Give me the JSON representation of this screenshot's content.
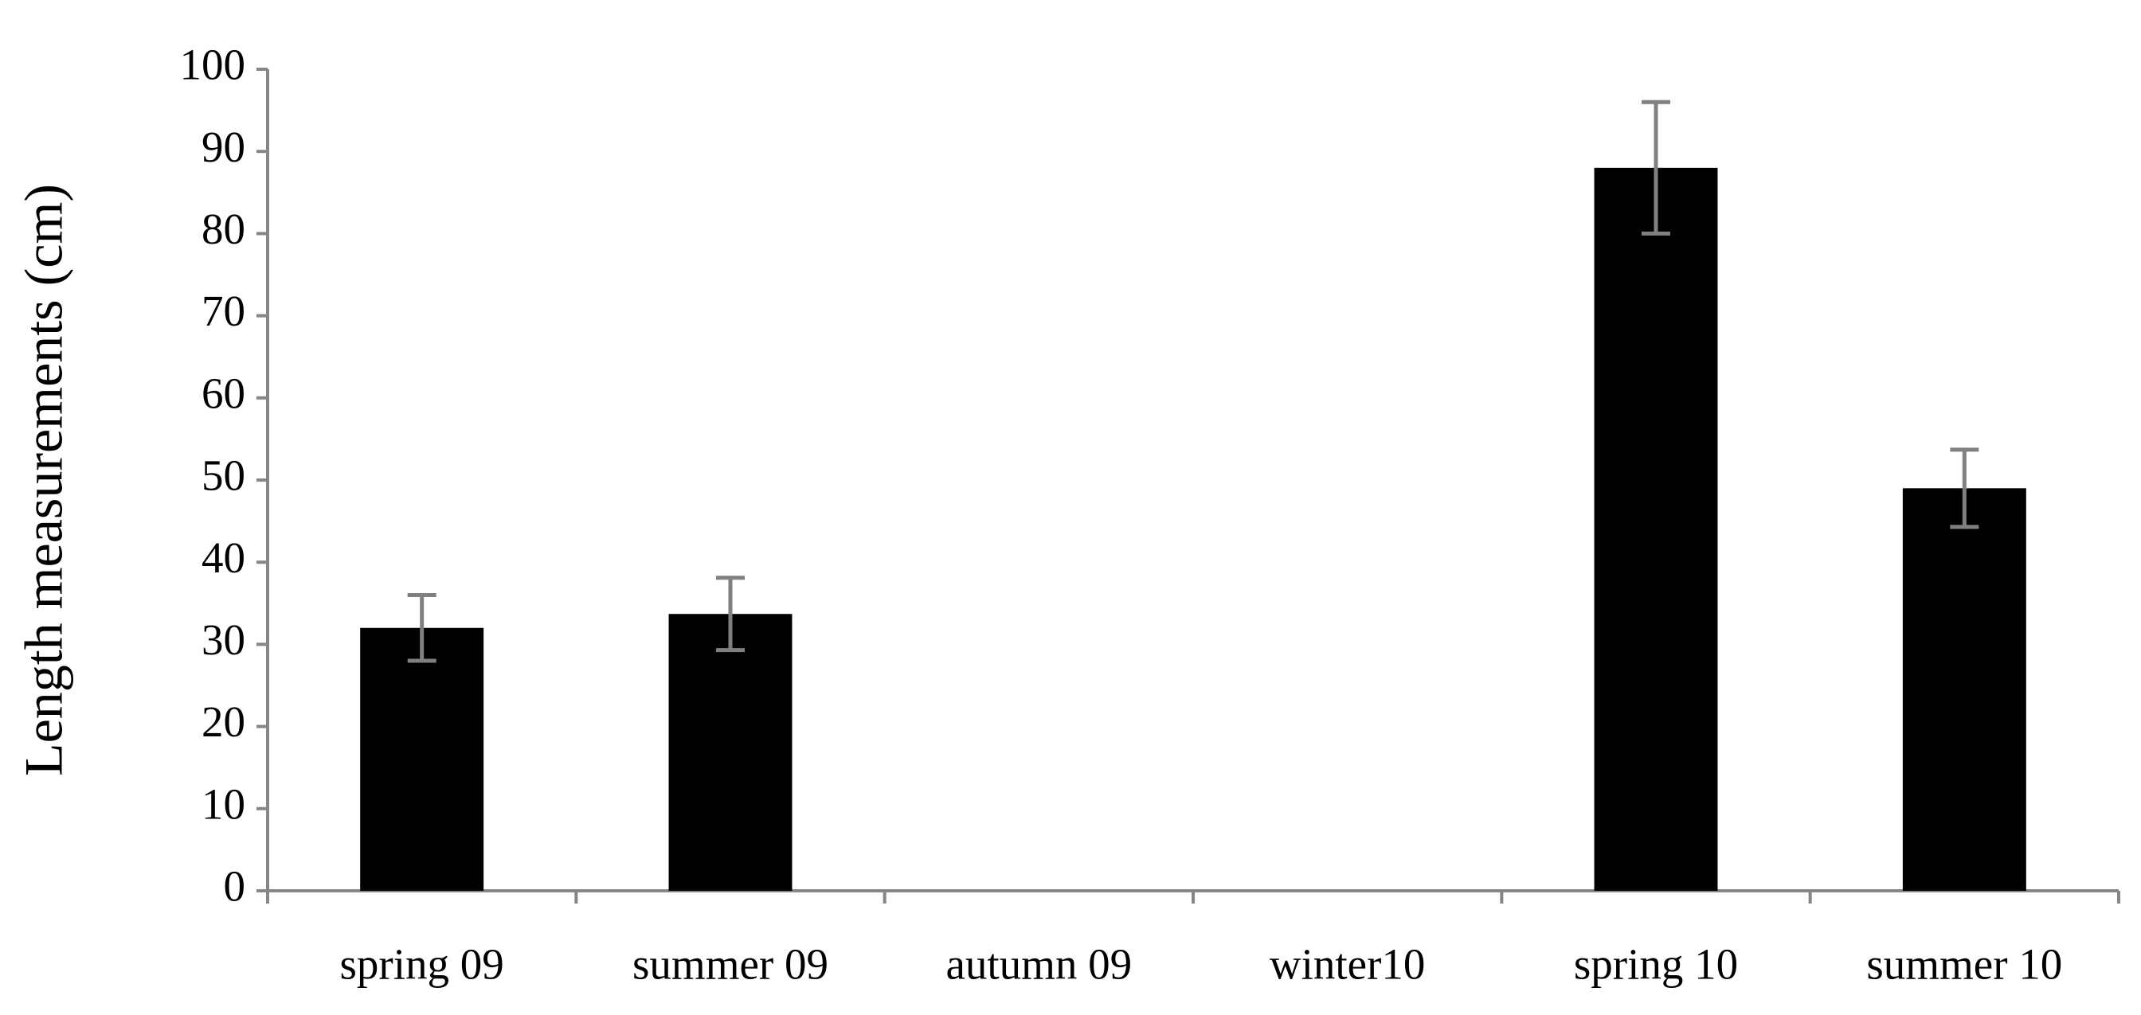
{
  "chart_data": {
    "type": "bar",
    "y_label": "Length measurements (cm)",
    "categories": [
      "spring 09",
      "summer 09",
      "autumn 09",
      "winter10",
      "spring 10",
      "summer 10"
    ],
    "values": [
      32,
      33.7,
      null,
      null,
      88,
      49
    ],
    "errors": [
      4,
      4.4,
      null,
      null,
      8,
      4.7
    ],
    "color": "#000000",
    "error_color": "#808080",
    "ylim": [
      0,
      100
    ],
    "yticks": [
      0,
      10,
      20,
      30,
      40,
      50,
      60,
      70,
      80,
      90,
      100
    ],
    "grid": false
  }
}
